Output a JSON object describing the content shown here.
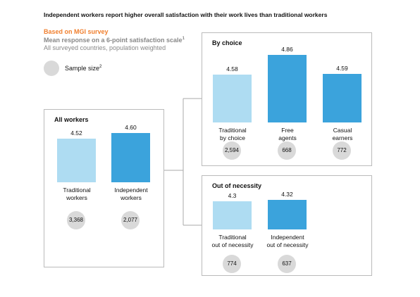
{
  "header": {
    "title": "Independent workers report higher overall satisfaction with their work lives than traditional workers",
    "source": "Based on MGI survey",
    "subtitle": "Mean response on a 6-point satisfaction scale",
    "subtitle_note": "1",
    "scope": "All surveyed countries, population weighted",
    "legend": "Sample size",
    "legend_note": "2"
  },
  "chart_data": [
    {
      "type": "bar",
      "title": "All workers",
      "categories": [
        "Traditional\nworkers",
        "Independent\nworkers"
      ],
      "values": [
        4.52,
        4.6
      ],
      "value_labels": [
        "4.52",
        "4.60"
      ],
      "colors": [
        "#aedcf2",
        "#3ba3dc"
      ],
      "sample_sizes": [
        "3,368",
        "2,077"
      ],
      "ylim": [
        3.9,
        4.9
      ]
    },
    {
      "type": "bar",
      "title": "By choice",
      "categories": [
        "Traditional\nby choice",
        "Free\nagents",
        "Casual\nearners"
      ],
      "values": [
        4.58,
        4.86,
        4.59
      ],
      "colors": [
        "#aedcf2",
        "#3ba3dc",
        "#3ba3dc"
      ],
      "sample_sizes": [
        "2,594",
        "668",
        "772"
      ],
      "ylim": [
        3.9,
        4.9
      ]
    },
    {
      "type": "bar",
      "title": "Out of necessity",
      "categories": [
        "Traditional\nout of necessity",
        "Independent\nout of necessity"
      ],
      "values": [
        4.3,
        4.32
      ],
      "colors": [
        "#aedcf2",
        "#3ba3dc"
      ],
      "sample_sizes": [
        "774",
        "637"
      ],
      "ylim": [
        3.9,
        4.9
      ]
    }
  ]
}
